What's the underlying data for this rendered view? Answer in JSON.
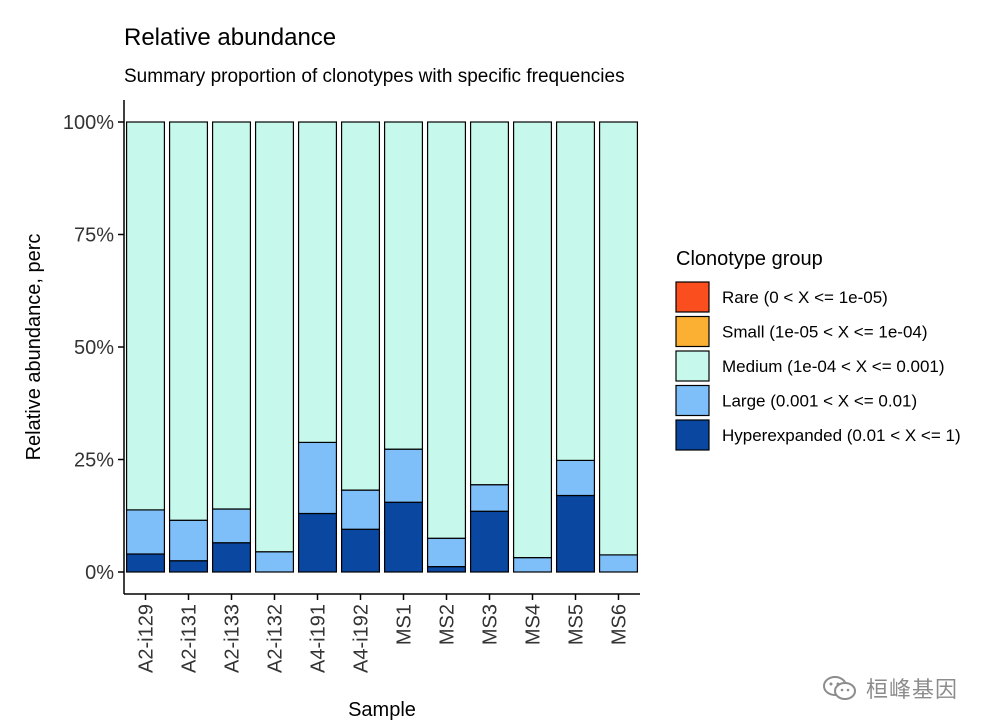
{
  "chart_data": {
    "type": "bar",
    "stacked": true,
    "title": "Relative abundance",
    "subtitle": "Summary proportion of clonotypes with specific frequencies",
    "xlabel": "Sample",
    "ylabel": "Relative abundance, perc",
    "ylim": [
      0,
      1
    ],
    "yticks": [
      0,
      0.25,
      0.5,
      0.75,
      1
    ],
    "ytick_labels": [
      "0%",
      "25%",
      "50%",
      "75%",
      "100%"
    ],
    "categories": [
      "A2-i129",
      "A2-i131",
      "A2-i133",
      "A2-i132",
      "A4-i191",
      "A4-i192",
      "MS1",
      "MS2",
      "MS3",
      "MS4",
      "MS5",
      "MS6"
    ],
    "legend_title": "Clonotype group",
    "legend_position": "right",
    "grid": false,
    "series": [
      {
        "name": "Hyperexpanded (0.01 < X <= 1)",
        "color": "#0a47a0",
        "values": [
          0.04,
          0.025,
          0.065,
          0,
          0.13,
          0.095,
          0.155,
          0.012,
          0.135,
          0,
          0.17,
          0
        ]
      },
      {
        "name": "Large (0.001 < X <= 0.01)",
        "color": "#7ebffa",
        "values": [
          0.098,
          0.09,
          0.075,
          0.045,
          0.158,
          0.087,
          0.118,
          0.063,
          0.059,
          0.032,
          0.078,
          0.038
        ]
      },
      {
        "name": "Medium (1e-04 < X <= 0.001)",
        "color": "#c6f9eb",
        "values": [
          0.862,
          0.885,
          0.86,
          0.955,
          0.712,
          0.818,
          0.727,
          0.925,
          0.806,
          0.968,
          0.752,
          0.962
        ]
      },
      {
        "name": "Small (1e-05 < X <= 1e-04)",
        "color": "#fbb034",
        "values": [
          0,
          0,
          0,
          0,
          0,
          0,
          0,
          0,
          0,
          0,
          0,
          0
        ]
      },
      {
        "name": "Rare (0 < X <= 1e-05)",
        "color": "#fb4e1f",
        "values": [
          0,
          0,
          0,
          0,
          0,
          0,
          0,
          0,
          0,
          0,
          0,
          0
        ]
      }
    ],
    "legend_order": [
      "Rare (0 < X <= 1e-05)",
      "Small (1e-05 < X <= 1e-04)",
      "Medium (1e-04 < X <= 0.001)",
      "Large (0.001 < X <= 0.01)",
      "Hyperexpanded (0.01 < X <= 1)"
    ]
  },
  "watermark": {
    "text": "桓峰基因",
    "icon": "wechat-icon"
  }
}
